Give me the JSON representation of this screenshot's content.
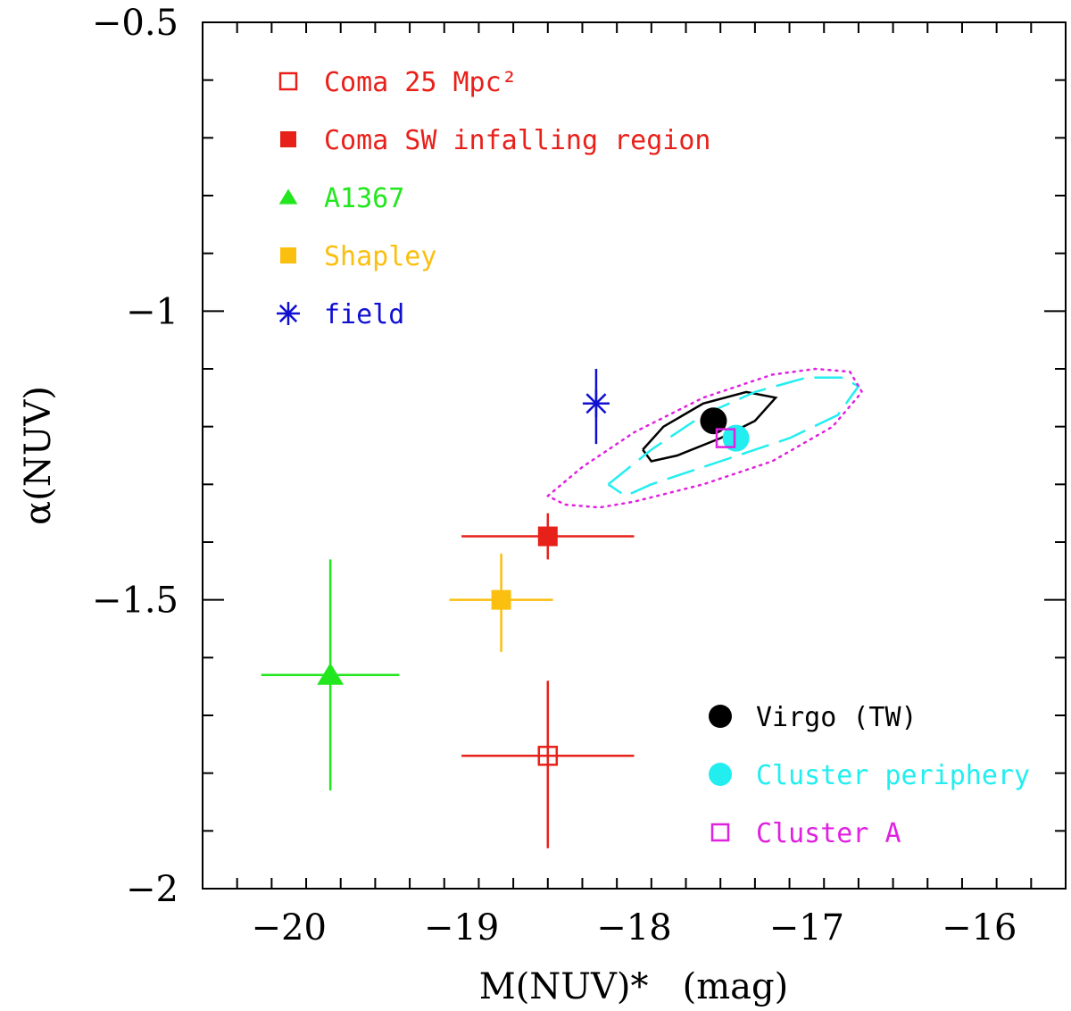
{
  "chart_data": {
    "type": "scatter",
    "title": "",
    "xlabel": "M(NUV)*   (mag)",
    "ylabel": "α(NUV)",
    "xlim": [
      -20.5,
      -15.5
    ],
    "ylim": [
      -2,
      -0.5
    ],
    "x_major_ticks": [
      -20,
      -19,
      -18,
      -17,
      -16
    ],
    "x_tick_labels": [
      "−20",
      "−19",
      "−18",
      "−17",
      "−16"
    ],
    "y_major_ticks": [
      -2,
      -1.5,
      -1,
      -0.5
    ],
    "y_tick_labels": [
      "−2",
      "−1.5",
      "−1",
      "−0.5"
    ],
    "grid": false,
    "series": [
      {
        "name": "Coma 25 Mpc²",
        "marker": "open-square",
        "color": "#e8201a",
        "x": -18.5,
        "y": -1.77,
        "xerr": [
          0.5,
          0.5
        ],
        "yerr": [
          0.16,
          0.13
        ]
      },
      {
        "name": "Coma SW infalling region",
        "marker": "filled-square",
        "color": "#e8201a",
        "x": -18.5,
        "y": -1.39,
        "xerr": [
          0.5,
          0.5
        ],
        "yerr": [
          0.04,
          0.04
        ]
      },
      {
        "name": "A1367",
        "marker": "filled-triangle",
        "color": "#22e61e",
        "x": -19.76,
        "y": -1.63,
        "xerr": [
          0.4,
          0.4
        ],
        "yerr": [
          0.2,
          0.2
        ]
      },
      {
        "name": "Shapley",
        "marker": "filled-square",
        "color": "#fbbf10",
        "x": -18.77,
        "y": -1.5,
        "xerr": [
          0.3,
          0.3
        ],
        "yerr": [
          0.09,
          0.08
        ]
      },
      {
        "name": "field",
        "marker": "asterisk",
        "color": "#1010d0",
        "x": -18.22,
        "y": -1.16,
        "xerr": [
          0,
          0
        ],
        "yerr": [
          0.07,
          0.06
        ]
      },
      {
        "name": "Virgo (TW)",
        "marker": "filled-circle",
        "color": "#000000",
        "x": -17.54,
        "y": -1.19
      },
      {
        "name": "Cluster periphery",
        "marker": "filled-circle",
        "color": "#22eef0",
        "x": -17.41,
        "y": -1.22
      },
      {
        "name": "Cluster A",
        "marker": "open-square",
        "color": "#e021e0",
        "x": -17.47,
        "y": -1.22
      }
    ],
    "contours": [
      {
        "of": "Virgo (TW)",
        "style": "solid",
        "color": "#000000",
        "points": [
          [
            -17.95,
            -1.24
          ],
          [
            -17.83,
            -1.2
          ],
          [
            -17.6,
            -1.16
          ],
          [
            -17.35,
            -1.14
          ],
          [
            -17.18,
            -1.15
          ],
          [
            -17.3,
            -1.19
          ],
          [
            -17.5,
            -1.22
          ],
          [
            -17.75,
            -1.25
          ],
          [
            -17.9,
            -1.26
          ],
          [
            -17.95,
            -1.24
          ]
        ]
      },
      {
        "of": "Cluster periphery",
        "style": "dashed",
        "color": "#22eef0",
        "points": [
          [
            -18.15,
            -1.3
          ],
          [
            -17.9,
            -1.24
          ],
          [
            -17.6,
            -1.18
          ],
          [
            -17.3,
            -1.14
          ],
          [
            -17.0,
            -1.115
          ],
          [
            -16.8,
            -1.115
          ],
          [
            -16.7,
            -1.13
          ],
          [
            -16.82,
            -1.18
          ],
          [
            -17.1,
            -1.22
          ],
          [
            -17.5,
            -1.26
          ],
          [
            -17.9,
            -1.3
          ],
          [
            -18.05,
            -1.32
          ],
          [
            -18.15,
            -1.3
          ]
        ]
      },
      {
        "of": "Cluster A",
        "style": "dotted",
        "color": "#e021e0",
        "points": [
          [
            -18.5,
            -1.32
          ],
          [
            -18.3,
            -1.27
          ],
          [
            -18.0,
            -1.21
          ],
          [
            -17.6,
            -1.15
          ],
          [
            -17.2,
            -1.11
          ],
          [
            -16.95,
            -1.1
          ],
          [
            -16.75,
            -1.105
          ],
          [
            -16.68,
            -1.14
          ],
          [
            -16.85,
            -1.2
          ],
          [
            -17.2,
            -1.26
          ],
          [
            -17.6,
            -1.3
          ],
          [
            -18.0,
            -1.33
          ],
          [
            -18.2,
            -1.34
          ],
          [
            -18.4,
            -1.335
          ],
          [
            -18.5,
            -1.32
          ]
        ]
      }
    ],
    "legend": {
      "top_left": [
        {
          "label": "Coma 25 Mpc²",
          "marker": "open-square",
          "color": "#e8201a"
        },
        {
          "label": "Coma SW infalling region",
          "marker": "filled-square",
          "color": "#e8201a"
        },
        {
          "label": "A1367",
          "marker": "filled-triangle",
          "color": "#22e61e"
        },
        {
          "label": "Shapley",
          "marker": "filled-square",
          "color": "#fbbf10"
        },
        {
          "label": "field",
          "marker": "asterisk",
          "color": "#1010d0"
        }
      ],
      "bottom_right": [
        {
          "label": "Virgo (TW)",
          "marker": "filled-circle",
          "color": "#000000"
        },
        {
          "label": "Cluster periphery",
          "marker": "filled-circle",
          "color": "#22eef0"
        },
        {
          "label": "Cluster A",
          "marker": "open-square",
          "color": "#e021e0"
        }
      ]
    }
  }
}
